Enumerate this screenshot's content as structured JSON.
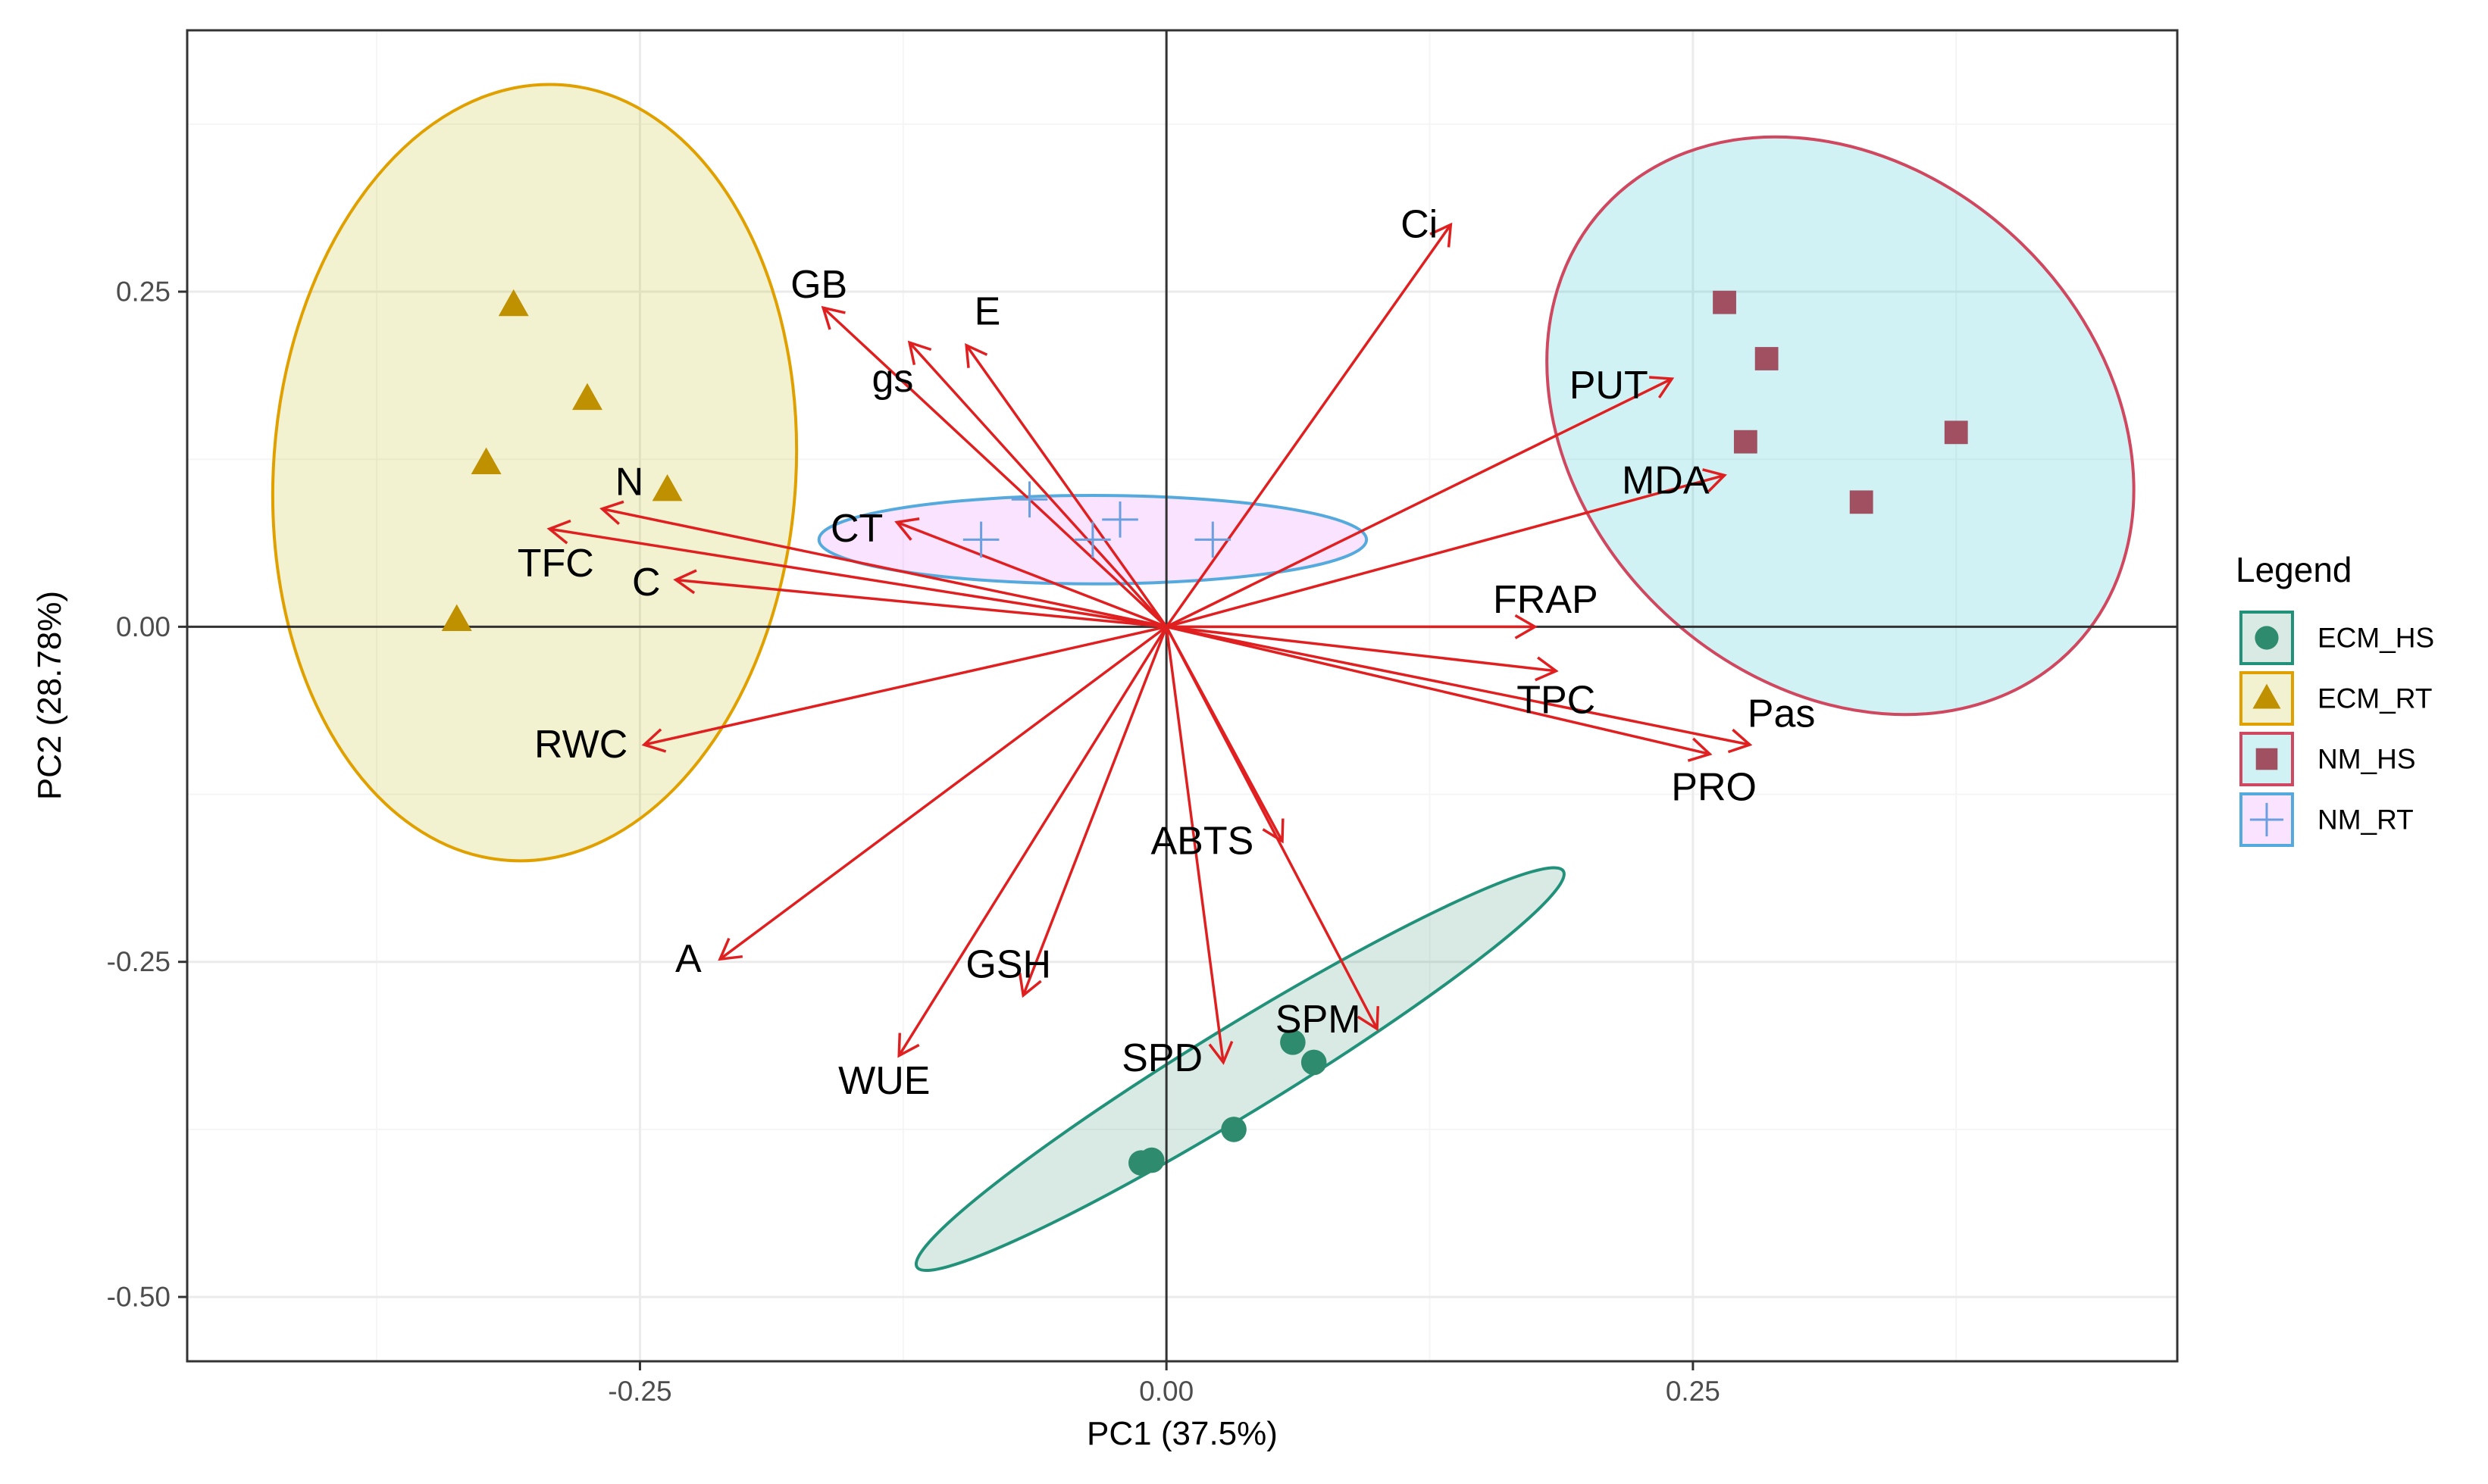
{
  "chart_data": {
    "type": "scatter",
    "subtype": "pca-biplot",
    "xlabel": "PC1 (37.5%)",
    "ylabel": "PC2 (28.78%)",
    "xlim": [
      -0.465,
      0.48
    ],
    "ylim": [
      -0.548,
      0.445
    ],
    "xticks": [
      {
        "value": -0.25,
        "label": "-0.25"
      },
      {
        "value": 0.0,
        "label": "0.00"
      },
      {
        "value": 0.25,
        "label": "0.25"
      }
    ],
    "yticks": [
      {
        "value": 0.25,
        "label": "0.25"
      },
      {
        "value": 0.0,
        "label": "0.00"
      },
      {
        "value": -0.25,
        "label": "-0.25"
      },
      {
        "value": -0.5,
        "label": "-0.50"
      }
    ],
    "grid": true,
    "reference_lines": {
      "x": 0,
      "y": 0
    },
    "legend": {
      "title": "Legend",
      "position": "right",
      "entries": [
        {
          "name": "ECM_HS",
          "shape": "circle",
          "color": "#2e8b6e",
          "fill": "#2e8b6e",
          "border": "#21917a"
        },
        {
          "name": "ECM_RT",
          "shape": "triangle",
          "color": "#bf9000",
          "fill": "#b8b800",
          "border": "#e0a000"
        },
        {
          "name": "NM_HS",
          "shape": "square",
          "color": "#a05060",
          "fill": "#00b8c0",
          "border": "#d04860"
        },
        {
          "name": "NM_RT",
          "shape": "plus",
          "color": "#6a9fe0",
          "fill": "#e066ff",
          "border": "#55aadd"
        }
      ]
    },
    "groups": [
      {
        "name": "ECM_HS",
        "points": [
          [
            0.06,
            -0.31
          ],
          [
            0.07,
            -0.325
          ],
          [
            0.032,
            -0.375
          ],
          [
            -0.012,
            -0.4
          ],
          [
            -0.007,
            -0.398
          ]
        ],
        "ellipse": {
          "cx": 0.035,
          "cy": -0.33,
          "rx": 0.18,
          "ry": 0.032,
          "angle_deg": -31.5
        }
      },
      {
        "name": "ECM_RT",
        "points": [
          [
            -0.31,
            0.24
          ],
          [
            -0.275,
            0.17
          ],
          [
            -0.323,
            0.122
          ],
          [
            -0.237,
            0.102
          ],
          [
            -0.337,
            0.005
          ]
        ],
        "ellipse": {
          "cx": -0.3,
          "cy": 0.115,
          "rx": 0.124,
          "ry": 0.29,
          "angle_deg": 4
        }
      },
      {
        "name": "NM_HS",
        "points": [
          [
            0.265,
            0.242
          ],
          [
            0.285,
            0.2
          ],
          [
            0.275,
            0.138
          ],
          [
            0.375,
            0.145
          ],
          [
            0.33,
            0.093
          ]
        ],
        "ellipse": {
          "cx": 0.32,
          "cy": 0.15,
          "rx": 0.122,
          "ry": 0.24,
          "angle_deg": -47
        }
      },
      {
        "name": "NM_RT",
        "points": [
          [
            -0.088,
            0.065
          ],
          [
            -0.065,
            0.095
          ],
          [
            -0.022,
            0.08
          ],
          [
            -0.035,
            0.065
          ],
          [
            0.022,
            0.065
          ]
        ],
        "ellipse": {
          "cx": -0.035,
          "cy": 0.065,
          "rx": 0.13,
          "ry": 0.033,
          "angle_deg": 0
        }
      }
    ],
    "arrow_color": "#e02020",
    "arrows": [
      {
        "name": "Ci",
        "x": 0.135,
        "y": 0.3,
        "lx": 0.12,
        "ly": 0.3
      },
      {
        "name": "GB",
        "x": -0.163,
        "y": 0.238,
        "lx": -0.165,
        "ly": 0.255
      },
      {
        "name": "E",
        "x": -0.095,
        "y": 0.21,
        "lx": -0.085,
        "ly": 0.235
      },
      {
        "name": "gs",
        "x": -0.122,
        "y": 0.212,
        "lx": -0.13,
        "ly": 0.185
      },
      {
        "name": "PUT",
        "x": 0.24,
        "y": 0.185,
        "lx": 0.21,
        "ly": 0.18
      },
      {
        "name": "MDA",
        "x": 0.265,
        "y": 0.113,
        "lx": 0.237,
        "ly": 0.109
      },
      {
        "name": "N",
        "x": -0.268,
        "y": 0.088,
        "lx": -0.255,
        "ly": 0.108
      },
      {
        "name": "CT",
        "x": -0.128,
        "y": 0.078,
        "lx": -0.147,
        "ly": 0.073
      },
      {
        "name": "TFC",
        "x": -0.293,
        "y": 0.073,
        "lx": -0.29,
        "ly": 0.047
      },
      {
        "name": "C",
        "x": -0.233,
        "y": 0.035,
        "lx": -0.247,
        "ly": 0.033
      },
      {
        "name": "FRAP",
        "x": 0.175,
        "y": 0,
        "lx": 0.18,
        "ly": 0.02
      },
      {
        "name": "TPC",
        "x": 0.185,
        "y": -0.033,
        "lx": 0.185,
        "ly": -0.055
      },
      {
        "name": "Pas",
        "x": 0.277,
        "y": -0.088,
        "lx": 0.292,
        "ly": -0.065
      },
      {
        "name": "PRO",
        "x": 0.258,
        "y": -0.095,
        "lx": 0.26,
        "ly": -0.12
      },
      {
        "name": "RWC",
        "x": -0.248,
        "y": -0.088,
        "lx": -0.278,
        "ly": -0.088
      },
      {
        "name": "ABTS",
        "x": 0.055,
        "y": -0.16,
        "lx": 0.017,
        "ly": -0.16
      },
      {
        "name": "A",
        "x": -0.212,
        "y": -0.248,
        "lx": -0.227,
        "ly": -0.248
      },
      {
        "name": "GSH",
        "x": -0.068,
        "y": -0.275,
        "lx": -0.075,
        "ly": -0.252
      },
      {
        "name": "SPM",
        "x": 0.1,
        "y": -0.3,
        "lx": 0.072,
        "ly": -0.293
      },
      {
        "name": "SPD",
        "x": 0.027,
        "y": -0.325,
        "lx": -0.002,
        "ly": -0.322
      },
      {
        "name": "WUE",
        "x": -0.127,
        "y": -0.32,
        "lx": -0.134,
        "ly": -0.339
      }
    ]
  }
}
